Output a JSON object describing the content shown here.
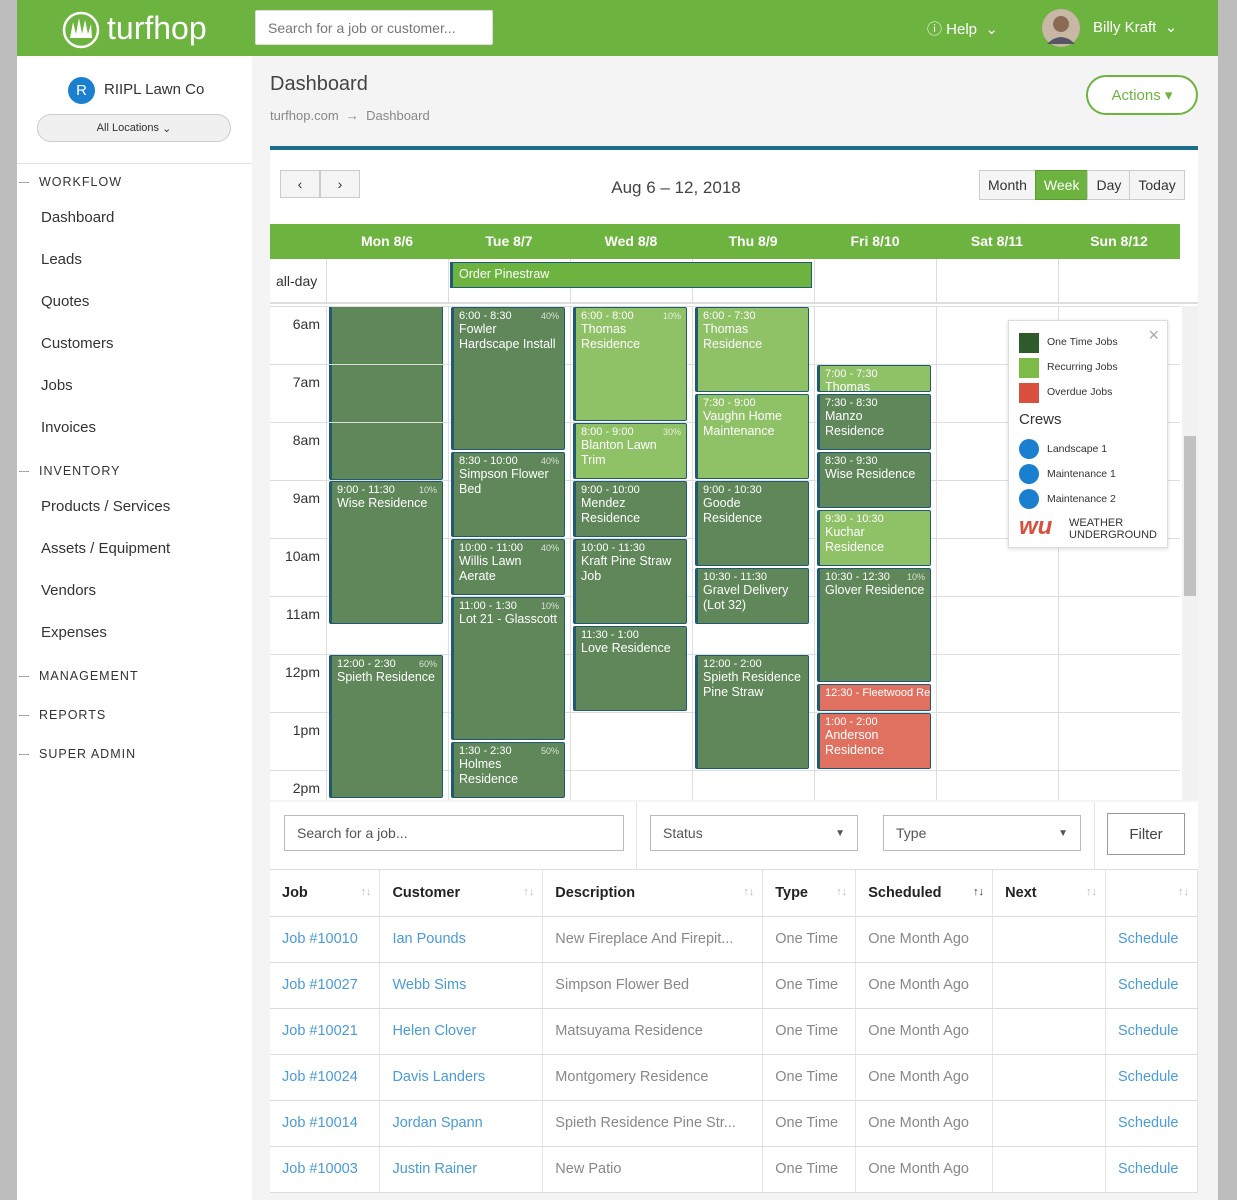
{
  "header": {
    "logo": "turfhop",
    "search_placeholder": "Search for a job or customer...",
    "help": "Help",
    "user": "Billy Kraft"
  },
  "sidebar": {
    "avatar": "R",
    "company": "RIIPL Lawn Co",
    "location": "All Locations",
    "sections": [
      {
        "title": "WORKFLOW",
        "items": [
          "Dashboard",
          "Leads",
          "Quotes",
          "Customers",
          "Jobs",
          "Invoices"
        ]
      },
      {
        "title": "INVENTORY",
        "items": [
          "Products / Services",
          "Assets / Equipment",
          "Vendors",
          "Expenses"
        ]
      },
      {
        "title": "MANAGEMENT",
        "items": []
      },
      {
        "title": "REPORTS",
        "items": []
      },
      {
        "title": "SUPER ADMIN",
        "items": []
      }
    ]
  },
  "page": {
    "title": "Dashboard",
    "breadcrumb": [
      "turfhop.com",
      "Dashboard"
    ],
    "actions": "Actions"
  },
  "calendar": {
    "range": "Aug 6 – 12, 2018",
    "views": [
      "Month",
      "Week",
      "Day",
      "Today"
    ],
    "active_view": "Week",
    "days": [
      "Mon 8/6",
      "Tue 8/7",
      "Wed 8/8",
      "Thu 8/9",
      "Fri 8/10",
      "Sat 8/11",
      "Sun 8/12"
    ],
    "allday_label": "all-day",
    "allday_event": {
      "title": "Order Pinestraw",
      "first_day": 1,
      "last_day": 3
    },
    "hours": [
      "6am",
      "7am",
      "8am",
      "9am",
      "10am",
      "11am",
      "12pm",
      "1pm",
      "2pm"
    ],
    "events": [
      {
        "day": 0,
        "time": "9:00 - 11:30",
        "title": "Wise Residence",
        "rain": "10%",
        "color": "#5f8759"
      },
      {
        "day": 0,
        "time": "12:00 - 2:30",
        "title": "Spieth Residence",
        "rain": "60%",
        "color": "#5f8759"
      },
      {
        "day": 1,
        "time": "6:00 - 8:30",
        "title": "Fowler Hardscape Install",
        "rain": "40%",
        "color": "#5f8759"
      },
      {
        "day": 1,
        "time": "8:30 - 10:00",
        "title": "Simpson Flower Bed",
        "rain": "40%",
        "color": "#5f8759"
      },
      {
        "day": 1,
        "time": "10:00 - 11:00",
        "title": "Willis Lawn Aerate",
        "rain": "40%",
        "color": "#5f8759"
      },
      {
        "day": 1,
        "time": "11:00 - 1:30",
        "title": "Lot 21 - Glasscott",
        "rain": "10%",
        "color": "#5f8759"
      },
      {
        "day": 1,
        "time": "1:30 - 2:30",
        "title": "Holmes Residence",
        "rain": "50%",
        "color": "#5f8759"
      },
      {
        "day": 2,
        "time": "6:00 - 8:00",
        "title": "Thomas Residence",
        "rain": "10%",
        "color": "#8fc266"
      },
      {
        "day": 2,
        "time": "8:00 - 9:00",
        "title": "Blanton Lawn Trim",
        "rain": "30%",
        "color": "#8fc266"
      },
      {
        "day": 2,
        "time": "9:00 - 10:00",
        "title": "Mendez Residence",
        "color": "#5f8759"
      },
      {
        "day": 2,
        "time": "10:00 - 11:30",
        "title": "Kraft Pine Straw Job",
        "color": "#5f8759"
      },
      {
        "day": 2,
        "time": "11:30 - 1:00",
        "title": "Love Residence",
        "color": "#5f8759"
      },
      {
        "day": 3,
        "time": "6:00 - 7:30",
        "title": "Thomas Residence",
        "color": "#8fc266"
      },
      {
        "day": 3,
        "time": "7:30 - 9:00",
        "title": "Vaughn Home Maintenance",
        "color": "#8fc266"
      },
      {
        "day": 3,
        "time": "9:00 - 10:30",
        "title": "Goode Residence",
        "color": "#5f8759"
      },
      {
        "day": 3,
        "time": "10:30 - 11:30",
        "title": "Gravel Delivery (Lot 32)",
        "color": "#5f8759"
      },
      {
        "day": 3,
        "time": "12:00 - 2:00",
        "title": "Spieth Residence Pine Straw",
        "color": "#5f8759"
      },
      {
        "day": 4,
        "time": "7:00 - 7:30",
        "title": "Thomas",
        "color": "#8fc266"
      },
      {
        "day": 4,
        "time": "7:30 - 8:30",
        "title": "Manzo Residence",
        "color": "#5f8759"
      },
      {
        "day": 4,
        "time": "8:30 - 9:30",
        "title": "Wise Residence",
        "color": "#5f8759"
      },
      {
        "day": 4,
        "time": "9:30 - 10:30",
        "title": "Kuchar Residence",
        "color": "#8fc266"
      },
      {
        "day": 4,
        "time": "10:30 - 12:30",
        "title": "Glover Residence",
        "rain": "10%",
        "color": "#5f8759"
      },
      {
        "day": 4,
        "time": "12:30",
        "title": "Fleetwood Re",
        "color": "#e0705f",
        "inline": true
      },
      {
        "day": 4,
        "time": "1:00 - 2:00",
        "title": "Anderson Residence",
        "color": "#e0705f"
      }
    ],
    "legend": [
      {
        "label": "One Time Jobs",
        "color": "#2f5a2a"
      },
      {
        "label": "Recurring Jobs",
        "color": "#7cbb46"
      },
      {
        "label": "Overdue Jobs",
        "color": "#d9503f"
      }
    ],
    "crews_title": "Crews",
    "crews": [
      "Landscape 1",
      "Maintenance 1",
      "Maintenance 2"
    ],
    "weather": [
      "WEATHER",
      "UNDERGROUND"
    ]
  },
  "filters": {
    "search_placeholder": "Search for a job...",
    "status": "Status",
    "type": "Type",
    "button": "Filter"
  },
  "table": {
    "columns": [
      "Job",
      "Customer",
      "Description",
      "Type",
      "Scheduled",
      "Next"
    ],
    "rows": [
      [
        "Job #10010",
        "Ian Pounds",
        "New Fireplace And Firepit...",
        "One Time",
        "One Month Ago",
        "",
        "Schedule"
      ],
      [
        "Job #10027",
        "Webb Sims",
        "Simpson Flower Bed",
        "One Time",
        "One Month Ago",
        "",
        "Schedule"
      ],
      [
        "Job #10021",
        "Helen Clover",
        "Matsuyama Residence",
        "One Time",
        "One Month Ago",
        "",
        "Schedule"
      ],
      [
        "Job #10024",
        "Davis Landers",
        "Montgomery Residence",
        "One Time",
        "One Month Ago",
        "",
        "Schedule"
      ],
      [
        "Job #10014",
        "Jordan Spann",
        "Spieth Residence Pine Str...",
        "One Time",
        "One Month Ago",
        "",
        "Schedule"
      ],
      [
        "Job #10003",
        "Justin Rainer",
        "New Patio",
        "One Time",
        "One Month Ago",
        "",
        "Schedule"
      ]
    ]
  }
}
